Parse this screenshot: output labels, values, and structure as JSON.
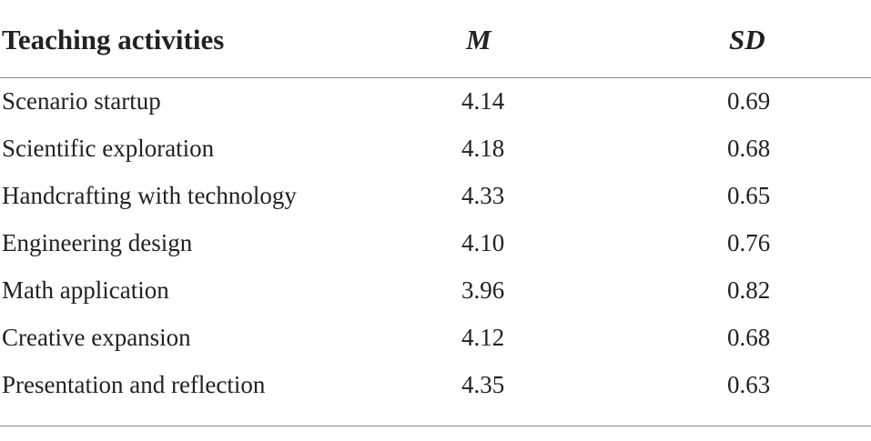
{
  "table": {
    "headers": [
      "Teaching activities",
      "M",
      "SD"
    ],
    "rows": [
      [
        "Scenario startup",
        "4.14",
        "0.69"
      ],
      [
        "Scientific exploration",
        "4.18",
        "0.68"
      ],
      [
        "Handcrafting with technology",
        "4.33",
        "0.65"
      ],
      [
        "Engineering design",
        "4.10",
        "0.76"
      ],
      [
        "Math application",
        "3.96",
        "0.82"
      ],
      [
        "Creative expansion",
        "4.12",
        "0.68"
      ],
      [
        "Presentation and reflection",
        "4.35",
        "0.63"
      ]
    ]
  }
}
